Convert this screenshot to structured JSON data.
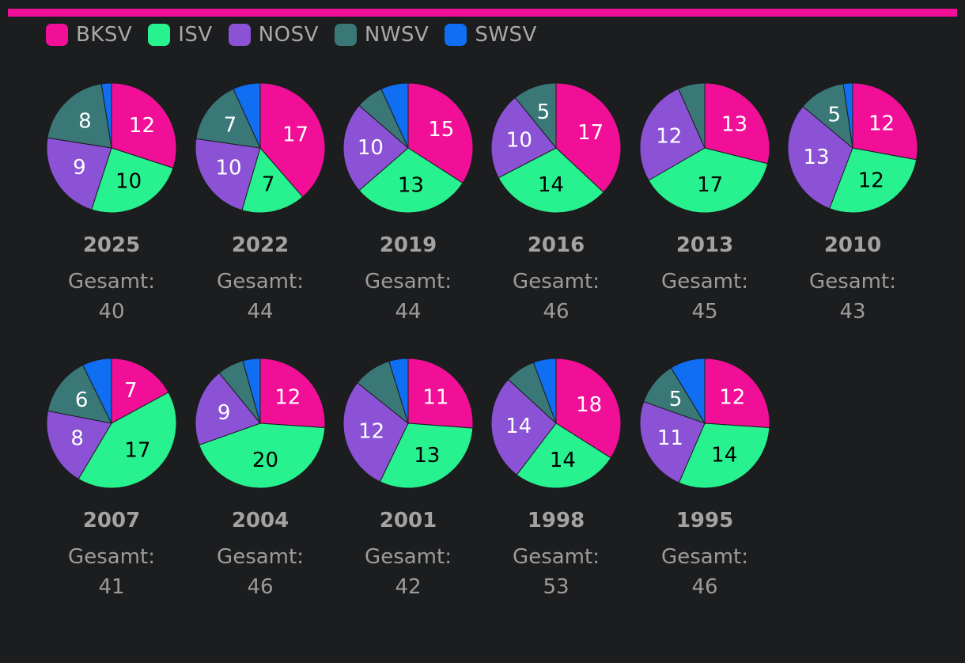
{
  "colors": {
    "background": "#1c1d1f",
    "accent_bar": "#f20f98",
    "label_light": "#ffffff",
    "label_dark": "#000000"
  },
  "legend": [
    {
      "name": "BKSV",
      "color": "#f20f98"
    },
    {
      "name": "ISV",
      "color": "#28f28f"
    },
    {
      "name": "NOSV",
      "color": "#8b52d6"
    },
    {
      "name": "NWSV",
      "color": "#3a7878"
    },
    {
      "name": "SWSV",
      "color": "#0f6ef2"
    }
  ],
  "total_prefix": "Gesamt:",
  "chart_data": {
    "type": "pie",
    "series_names": [
      "BKSV",
      "ISV",
      "NOSV",
      "NWSV",
      "SWSV"
    ],
    "pies": [
      {
        "year": "2025",
        "total": 40,
        "values": [
          12,
          10,
          9,
          8,
          1
        ]
      },
      {
        "year": "2022",
        "total": 44,
        "values": [
          17,
          7,
          10,
          7,
          3
        ]
      },
      {
        "year": "2019",
        "total": 44,
        "values": [
          15,
          13,
          10,
          3,
          3
        ]
      },
      {
        "year": "2016",
        "total": 46,
        "values": [
          17,
          14,
          10,
          5,
          0
        ]
      },
      {
        "year": "2013",
        "total": 45,
        "values": [
          13,
          17,
          12,
          3,
          0
        ]
      },
      {
        "year": "2010",
        "total": 43,
        "values": [
          12,
          12,
          13,
          5,
          1
        ]
      },
      {
        "year": "2007",
        "total": 41,
        "values": [
          7,
          17,
          8,
          6,
          3
        ]
      },
      {
        "year": "2004",
        "total": 46,
        "values": [
          12,
          20,
          9,
          3,
          2
        ]
      },
      {
        "year": "2001",
        "total": 42,
        "values": [
          11,
          13,
          12,
          4,
          2
        ]
      },
      {
        "year": "1998",
        "total": 53,
        "values": [
          18,
          14,
          14,
          4,
          3
        ]
      },
      {
        "year": "1995",
        "total": 46,
        "values": [
          12,
          14,
          11,
          5,
          4
        ]
      }
    ],
    "min_labeled_value": 5
  }
}
